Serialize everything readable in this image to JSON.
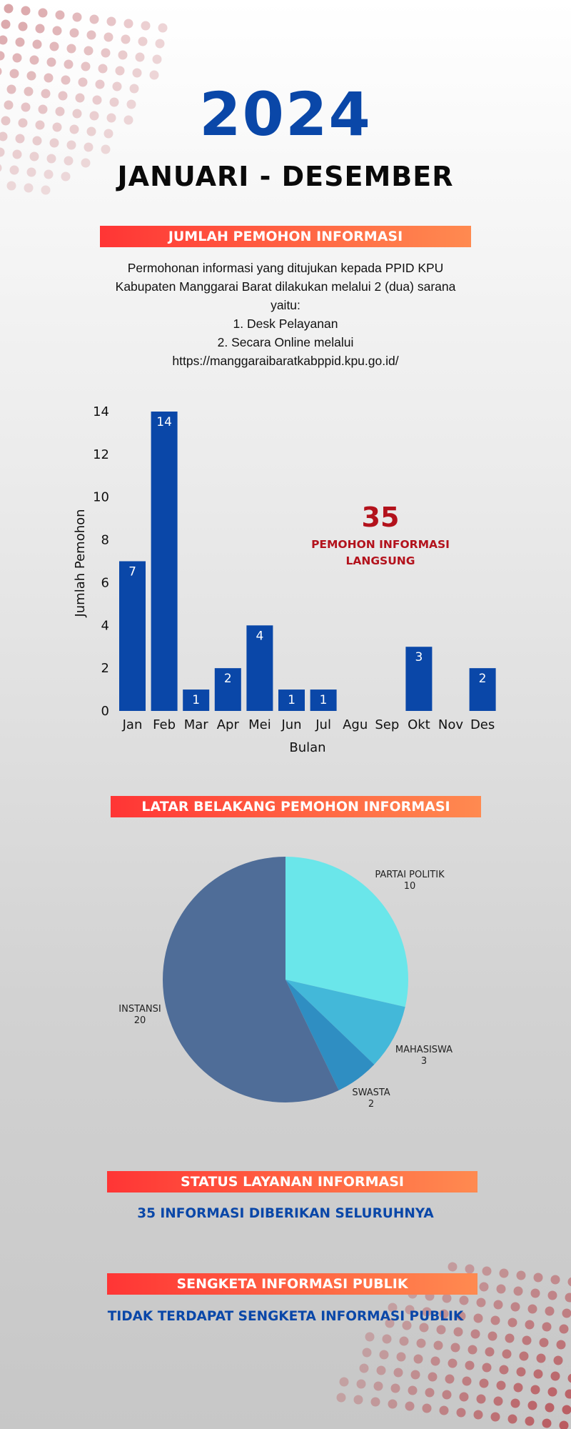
{
  "header": {
    "year": "2024",
    "period": "JANUARI - DESEMBER"
  },
  "section_applicants": {
    "title": "JUMLAH PEMOHON INFORMASI",
    "intro_lines": [
      "Permohonan informasi yang ditujukan kepada PPID KPU",
      "Kabupaten Manggarai Barat dilakukan melalui 2 (dua) sarana",
      "yaitu:",
      "1. Desk Pelayanan",
      "2. Secara Online melalui",
      "https://manggaraibaratkabppid.kpu.go.id/"
    ],
    "total_value": "35",
    "total_caption_line1": "PEMOHON INFORMASI",
    "total_caption_line2": "LANGSUNG"
  },
  "section_background": {
    "title": "LATAR BELAKANG PEMOHON INFORMASI"
  },
  "section_status": {
    "title": "STATUS LAYANAN INFORMASI",
    "text": "35 INFORMASI DIBERIKAN SELURUHNYA"
  },
  "section_dispute": {
    "title": "SENGKETA INFORMASI PUBLIK",
    "text": "TIDAK TERDAPAT SENGKETA INFORMASI PUBLIK"
  },
  "colors": {
    "accent_blue": "#0a47a8",
    "total_red": "#b3121c",
    "bar_blue": "#0a47a8"
  },
  "chart_data": [
    {
      "type": "bar",
      "categories": [
        "Jan",
        "Feb",
        "Mar",
        "Apr",
        "Mei",
        "Jun",
        "Jul",
        "Agu",
        "Sep",
        "Okt",
        "Nov",
        "Des"
      ],
      "values": [
        7,
        14,
        1,
        2,
        4,
        1,
        1,
        0,
        0,
        3,
        0,
        2
      ],
      "xlabel": "Bulan",
      "ylabel": "Jumlah Pemohon",
      "ylim": [
        0,
        14
      ],
      "yticks": [
        0,
        2,
        4,
        6,
        8,
        10,
        12,
        14
      ],
      "grid": false,
      "data_labels": true
    },
    {
      "type": "pie",
      "slices": [
        {
          "label": "PARTAI POLITIK",
          "value": 10,
          "color": "#6ae6ea"
        },
        {
          "label": "MAHASISWA",
          "value": 3,
          "color": "#43b8d9"
        },
        {
          "label": "SWASTA",
          "value": 2,
          "color": "#2f8ec2"
        },
        {
          "label": "INSTANSI",
          "value": 20,
          "color": "#4f6d98"
        }
      ]
    }
  ]
}
